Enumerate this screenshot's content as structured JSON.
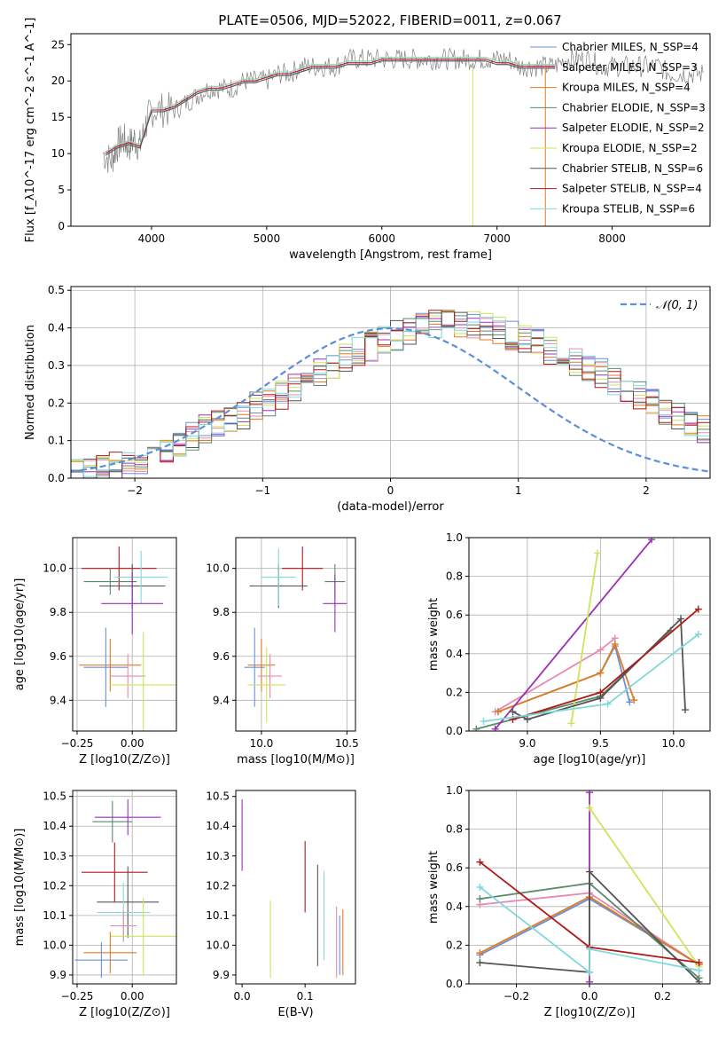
{
  "figure_title": "PLATE=0506, MJD=52022, FIBERID=0011, z=0.067",
  "series_colors": [
    "#6a8fd8",
    "#e88ab0",
    "#e07b20",
    "#5a8a6a",
    "#9b30b8",
    "#cfe35a",
    "#555555",
    "#b01818",
    "#80d8dc"
  ],
  "chart_data": [
    {
      "id": "spectrum",
      "type": "line",
      "title": "PLATE=0506, MJD=52022, FIBERID=0011, z=0.067",
      "xlabel": "wavelength [Angstrom, rest frame]",
      "ylabel": "Flux [f_λ10^-17 erg cm^-2 s^-1 A^-1]",
      "xlim": [
        3300,
        8850
      ],
      "ylim": [
        0,
        26.5
      ],
      "xticks": [
        "4000",
        "5000",
        "6000",
        "7000",
        "8000"
      ],
      "yticks": [
        "0",
        "5",
        "10",
        "15",
        "20",
        "25"
      ],
      "grid": false,
      "legend_position": "right",
      "legend": [
        "Chabrier MILES, N_SSP=4",
        "Salpeter MILES, N_SSP=3",
        "Kroupa MILES, N_SSP=4",
        "Chabrier ELODIE, N_SSP=3",
        "Salpeter ELODIE, N_SSP=2",
        "Kroupa ELODIE, N_SSP=2",
        "Chabrier STELIB, N_SSP=6",
        "Salpeter STELIB, N_SSP=4",
        "Kroupa STELIB, N_SSP=6"
      ],
      "data_line": {
        "x": [
          3580,
          3650,
          3700,
          3750,
          3800,
          3850,
          3900,
          3950,
          4000,
          4100,
          4200,
          4300,
          4400,
          4500,
          4600,
          4700,
          4800,
          4900,
          5000,
          5100,
          5200,
          5300,
          5400,
          5500,
          5600,
          5700,
          5800,
          5900,
          6000,
          6100,
          6200,
          6300,
          6400,
          6500,
          6600,
          6700,
          6800,
          6900,
          7000,
          7100,
          7200,
          7300,
          7400,
          7500,
          7600,
          7700,
          7800,
          7900,
          8000,
          8100,
          8200,
          8300,
          8400,
          8500,
          8600,
          8700,
          8800
        ],
        "y": [
          10,
          9,
          11,
          12,
          11,
          12,
          11,
          14,
          16,
          16,
          16,
          17,
          18,
          19,
          19,
          19,
          20,
          20,
          20,
          21,
          21,
          22,
          22,
          22,
          22,
          23,
          23,
          23,
          23,
          23,
          23,
          23,
          23,
          23,
          23,
          23,
          23,
          23,
          23,
          23,
          22,
          22,
          22,
          22,
          23,
          23,
          23,
          22,
          22,
          22,
          22,
          22,
          22,
          21,
          21,
          21,
          21
        ]
      },
      "model_line": {
        "x": [
          3600,
          3700,
          3800,
          3900,
          4000,
          4100,
          4200,
          4300,
          4400,
          4500,
          4600,
          4700,
          4800,
          4900,
          5000,
          5100,
          5200,
          5300,
          5400,
          5500,
          5600,
          5700,
          5800,
          5900,
          6000,
          6100,
          6200,
          6300,
          6400,
          6500,
          6600,
          6700,
          6800,
          6900,
          7000,
          7100,
          7200,
          7300,
          7400,
          7500
        ],
        "y": [
          10,
          11,
          11.5,
          11,
          16,
          16,
          16.5,
          17.5,
          18.5,
          19,
          19,
          19.5,
          20,
          20,
          20.5,
          21,
          21,
          21.5,
          22,
          22,
          22,
          22.5,
          22.5,
          22.5,
          23,
          23,
          23,
          23,
          23,
          23,
          23,
          23,
          23,
          23,
          22.5,
          22.5,
          22,
          22,
          22,
          22
        ]
      }
    },
    {
      "id": "residuals",
      "type": "line",
      "xlabel": "(data-model)/error",
      "ylabel": "Normed distribution",
      "xlim": [
        -2.5,
        2.5
      ],
      "ylim": [
        0,
        0.51
      ],
      "xticks": [
        "−2",
        "−1",
        "0",
        "1",
        "2"
      ],
      "yticks": [
        "0.0",
        "0.1",
        "0.2",
        "0.3",
        "0.4",
        "0.5"
      ],
      "grid": true,
      "legend_position": "top-right",
      "legend": [
        "𝒩(0, 1)"
      ],
      "bin_edges_start": -2.5,
      "bin_width": 0.1,
      "histogram_values": [
        0.02,
        0.02,
        0.03,
        0.03,
        0.04,
        0.05,
        0.06,
        0.07,
        0.09,
        0.11,
        0.13,
        0.14,
        0.15,
        0.17,
        0.19,
        0.2,
        0.22,
        0.24,
        0.26,
        0.28,
        0.3,
        0.32,
        0.34,
        0.35,
        0.37,
        0.38,
        0.39,
        0.4,
        0.41,
        0.41,
        0.41,
        0.41,
        0.4,
        0.39,
        0.38,
        0.37,
        0.36,
        0.34,
        0.33,
        0.31,
        0.29,
        0.28,
        0.26,
        0.24,
        0.22,
        0.2,
        0.18,
        0.17,
        0.15,
        0.13
      ]
    },
    {
      "id": "age-vs-Z",
      "type": "scatter",
      "xlabel": "Z [log10(Z/Z⊙)]",
      "ylabel": "age [log10(age/yr)]",
      "xlim": [
        -0.27,
        0.2
      ],
      "ylim": [
        9.26,
        10.14
      ],
      "xticks": [
        "−0.25",
        "0.00"
      ],
      "yticks": [
        "9.4",
        "9.6",
        "9.8",
        "10.0"
      ],
      "grid": true,
      "points": [
        {
          "x": -0.06,
          "y": 10.0,
          "xerr": 0.17,
          "yerr": 0.1,
          "series": 7
        },
        {
          "x": -0.1,
          "y": 9.94,
          "xerr": 0.12,
          "yerr": 0.06,
          "series": 3
        },
        {
          "x": 0.0,
          "y": 9.92,
          "xerr": 0.15,
          "yerr": 0.1,
          "series": 6
        },
        {
          "x": 0.04,
          "y": 9.96,
          "xerr": 0.12,
          "yerr": 0.12,
          "series": 8
        },
        {
          "x": 0.0,
          "y": 9.84,
          "xerr": 0.14,
          "yerr": 0.14,
          "series": 4
        },
        {
          "x": -0.1,
          "y": 9.56,
          "xerr": 0.14,
          "yerr": 0.12,
          "series": 2
        },
        {
          "x": -0.12,
          "y": 9.55,
          "xerr": 0.1,
          "yerr": 0.18,
          "series": 0
        },
        {
          "x": -0.02,
          "y": 9.51,
          "xerr": 0.08,
          "yerr": 0.1,
          "series": 1
        },
        {
          "x": 0.05,
          "y": 9.47,
          "xerr": 0.15,
          "yerr": 0.24,
          "series": 5
        }
      ]
    },
    {
      "id": "age-vs-mass",
      "type": "scatter",
      "xlabel": "mass [log10(M/M⊙)]",
      "ylabel": "",
      "xlim": [
        9.85,
        10.55
      ],
      "ylim": [
        9.26,
        10.14
      ],
      "xticks": [
        "10.0",
        "10.5"
      ],
      "yticks": [
        "9.4",
        "9.6",
        "9.8",
        "10.0"
      ],
      "grid": true,
      "points": [
        {
          "x": 10.24,
          "y": 10.0,
          "xerr": 0.12,
          "yerr": 0.1,
          "series": 7
        },
        {
          "x": 10.43,
          "y": 9.94,
          "xerr": 0.06,
          "yerr": 0.08,
          "series": 3
        },
        {
          "x": 10.1,
          "y": 9.92,
          "xerr": 0.17,
          "yerr": 0.1,
          "series": 6
        },
        {
          "x": 10.1,
          "y": 9.96,
          "xerr": 0.1,
          "yerr": 0.13,
          "series": 8
        },
        {
          "x": 10.43,
          "y": 9.84,
          "xerr": 0.07,
          "yerr": 0.13,
          "series": 4
        },
        {
          "x": 10.0,
          "y": 9.56,
          "xerr": 0.08,
          "yerr": 0.12,
          "series": 2
        },
        {
          "x": 9.96,
          "y": 9.55,
          "xerr": 0.06,
          "yerr": 0.18,
          "series": 0
        },
        {
          "x": 10.05,
          "y": 9.51,
          "xerr": 0.07,
          "yerr": 0.1,
          "series": 1
        },
        {
          "x": 10.03,
          "y": 9.47,
          "xerr": 0.11,
          "yerr": 0.17,
          "series": 5
        }
      ]
    },
    {
      "id": "weight-vs-age",
      "type": "line",
      "xlabel": "age [log10(age/yr)]",
      "ylabel": "mass weight",
      "xlim": [
        8.6,
        10.25
      ],
      "ylim": [
        0,
        1
      ],
      "xticks": [
        "9.0",
        "9.5",
        "10.0"
      ],
      "yticks": [
        "0.0",
        "0.2",
        "0.4",
        "0.6",
        "0.8",
        "1.0"
      ],
      "grid": true,
      "series": [
        {
          "points": [
            [
              8.8,
              0.1
            ],
            [
              9.5,
              0.3
            ],
            [
              9.6,
              0.44
            ],
            [
              9.7,
              0.15
            ]
          ],
          "color": 0
        },
        {
          "points": [
            [
              8.78,
              0.1
            ],
            [
              9.5,
              0.42
            ],
            [
              9.6,
              0.48
            ]
          ],
          "color": 1
        },
        {
          "points": [
            [
              8.8,
              0.1
            ],
            [
              9.5,
              0.3
            ],
            [
              9.6,
              0.45
            ],
            [
              9.73,
              0.16
            ]
          ],
          "color": 2
        },
        {
          "points": [
            [
              8.65,
              0.01
            ],
            [
              9.5,
              0.18
            ],
            [
              9.98,
              0.52
            ]
          ],
          "color": 3
        },
        {
          "points": [
            [
              8.78,
              0.01
            ],
            [
              9.85,
              0.99
            ]
          ],
          "color": 4
        },
        {
          "points": [
            [
              9.3,
              0.04
            ],
            [
              9.48,
              0.92
            ]
          ],
          "color": 5
        },
        {
          "points": [
            [
              8.9,
              0.1
            ],
            [
              9.0,
              0.06
            ],
            [
              9.5,
              0.17
            ],
            [
              10.05,
              0.58
            ],
            [
              10.08,
              0.11
            ]
          ],
          "color": 6
        },
        {
          "points": [
            [
              8.9,
              0.06
            ],
            [
              9.5,
              0.2
            ],
            [
              10.17,
              0.63
            ]
          ],
          "color": 7
        },
        {
          "points": [
            [
              8.7,
              0.05
            ],
            [
              9.55,
              0.14
            ],
            [
              10.17,
              0.5
            ]
          ],
          "color": 8
        }
      ]
    },
    {
      "id": "mass-vs-Z",
      "type": "scatter",
      "xlabel": "Z [log10(Z/Z⊙)]",
      "ylabel": "mass [log10(M/M⊙)]",
      "xlim": [
        -0.27,
        0.2
      ],
      "ylim": [
        9.87,
        10.52
      ],
      "xticks": [
        "−0.25",
        "0.00"
      ],
      "yticks": [
        "9.9",
        "10.0",
        "10.1",
        "10.2",
        "10.3",
        "10.4",
        "10.5"
      ],
      "grid": true,
      "points": [
        {
          "x": -0.09,
          "y": 10.415,
          "xerr": 0.09,
          "yerr": 0.07,
          "series": 3
        },
        {
          "x": -0.02,
          "y": 10.43,
          "xerr": 0.15,
          "yerr": 0.06,
          "series": 4
        },
        {
          "x": -0.08,
          "y": 10.245,
          "xerr": 0.15,
          "yerr": 0.1,
          "series": 7
        },
        {
          "x": -0.02,
          "y": 10.145,
          "xerr": 0.14,
          "yerr": 0.12,
          "series": 6
        },
        {
          "x": -0.04,
          "y": 10.11,
          "xerr": 0.12,
          "yerr": 0.1,
          "series": 8
        },
        {
          "x": -0.04,
          "y": 10.065,
          "xerr": 0.06,
          "yerr": 0.05,
          "series": 1
        },
        {
          "x": 0.05,
          "y": 10.03,
          "xerr": 0.15,
          "yerr": 0.13,
          "series": 5
        },
        {
          "x": -0.1,
          "y": 9.975,
          "xerr": 0.12,
          "yerr": 0.07,
          "series": 2
        },
        {
          "x": -0.14,
          "y": 9.95,
          "xerr": 0.12,
          "yerr": 0.06,
          "series": 0
        }
      ]
    },
    {
      "id": "mass-vs-ebv",
      "type": "scatter",
      "xlabel": "E(B-V)",
      "ylabel": "",
      "xlim": [
        -0.01,
        0.18
      ],
      "ylim": [
        9.87,
        10.52
      ],
      "xticks": [
        "0.0",
        "0.1"
      ],
      "yticks": [
        "9.9",
        "10.0",
        "10.1",
        "10.2",
        "10.3",
        "10.4",
        "10.5"
      ],
      "grid": false,
      "points": [
        {
          "x": 0.0,
          "y": 10.37,
          "yerr": 0.12,
          "series": 4
        },
        {
          "x": 0.1,
          "y": 10.23,
          "yerr": 0.12,
          "series": 7
        },
        {
          "x": 0.12,
          "y": 10.1,
          "yerr": 0.17,
          "series": 6
        },
        {
          "x": 0.13,
          "y": 10.1,
          "yerr": 0.15,
          "series": 8
        },
        {
          "x": 0.15,
          "y": 10.01,
          "yerr": 0.12,
          "series": 1
        },
        {
          "x": 0.16,
          "y": 10.01,
          "yerr": 0.11,
          "series": 2
        },
        {
          "x": 0.155,
          "y": 10.0,
          "yerr": 0.1,
          "series": 0
        },
        {
          "x": 0.045,
          "y": 10.02,
          "yerr": 0.13,
          "series": 5
        }
      ]
    },
    {
      "id": "weight-vs-Z",
      "type": "line",
      "xlabel": "Z [log10(Z/Z⊙)]",
      "ylabel": "mass weight",
      "xlim": [
        -0.33,
        0.33
      ],
      "ylim": [
        0,
        1
      ],
      "xticks": [
        "−0.2",
        "0.0",
        "0.2"
      ],
      "yticks": [
        "0.0",
        "0.2",
        "0.4",
        "0.6",
        "0.8",
        "1.0"
      ],
      "grid": true,
      "series": [
        {
          "points": [
            [
              -0.3,
              0.15
            ],
            [
              0.0,
              0.44
            ],
            [
              0.3,
              0.1
            ]
          ],
          "color": 0
        },
        {
          "points": [
            [
              -0.3,
              0.41
            ],
            [
              0.0,
              0.47
            ],
            [
              0.3,
              0.1
            ]
          ],
          "color": 1
        },
        {
          "points": [
            [
              -0.3,
              0.16
            ],
            [
              0.0,
              0.45
            ],
            [
              0.3,
              0.1
            ]
          ],
          "color": 2
        },
        {
          "points": [
            [
              -0.3,
              0.44
            ],
            [
              0.0,
              0.52
            ],
            [
              0.3,
              0.03
            ]
          ],
          "color": 3
        },
        {
          "points": [
            [
              0.0,
              0.01
            ],
            [
              0.0,
              0.99
            ]
          ],
          "color": 4
        },
        {
          "points": [
            [
              0.0,
              0.91
            ],
            [
              0.3,
              0.09
            ]
          ],
          "color": 5
        },
        {
          "points": [
            [
              -0.3,
              0.11
            ],
            [
              0.0,
              0.06
            ],
            [
              0.0,
              0.58
            ],
            [
              0.3,
              0.01
            ]
          ],
          "color": 6
        },
        {
          "points": [
            [
              -0.3,
              0.63
            ],
            [
              0.0,
              0.19
            ],
            [
              0.3,
              0.11
            ]
          ],
          "color": 7
        },
        {
          "points": [
            [
              -0.3,
              0.5
            ],
            [
              0.0,
              0.06
            ],
            [
              0.0,
              0.18
            ],
            [
              0.3,
              0.07
            ]
          ],
          "color": 8
        }
      ]
    }
  ]
}
